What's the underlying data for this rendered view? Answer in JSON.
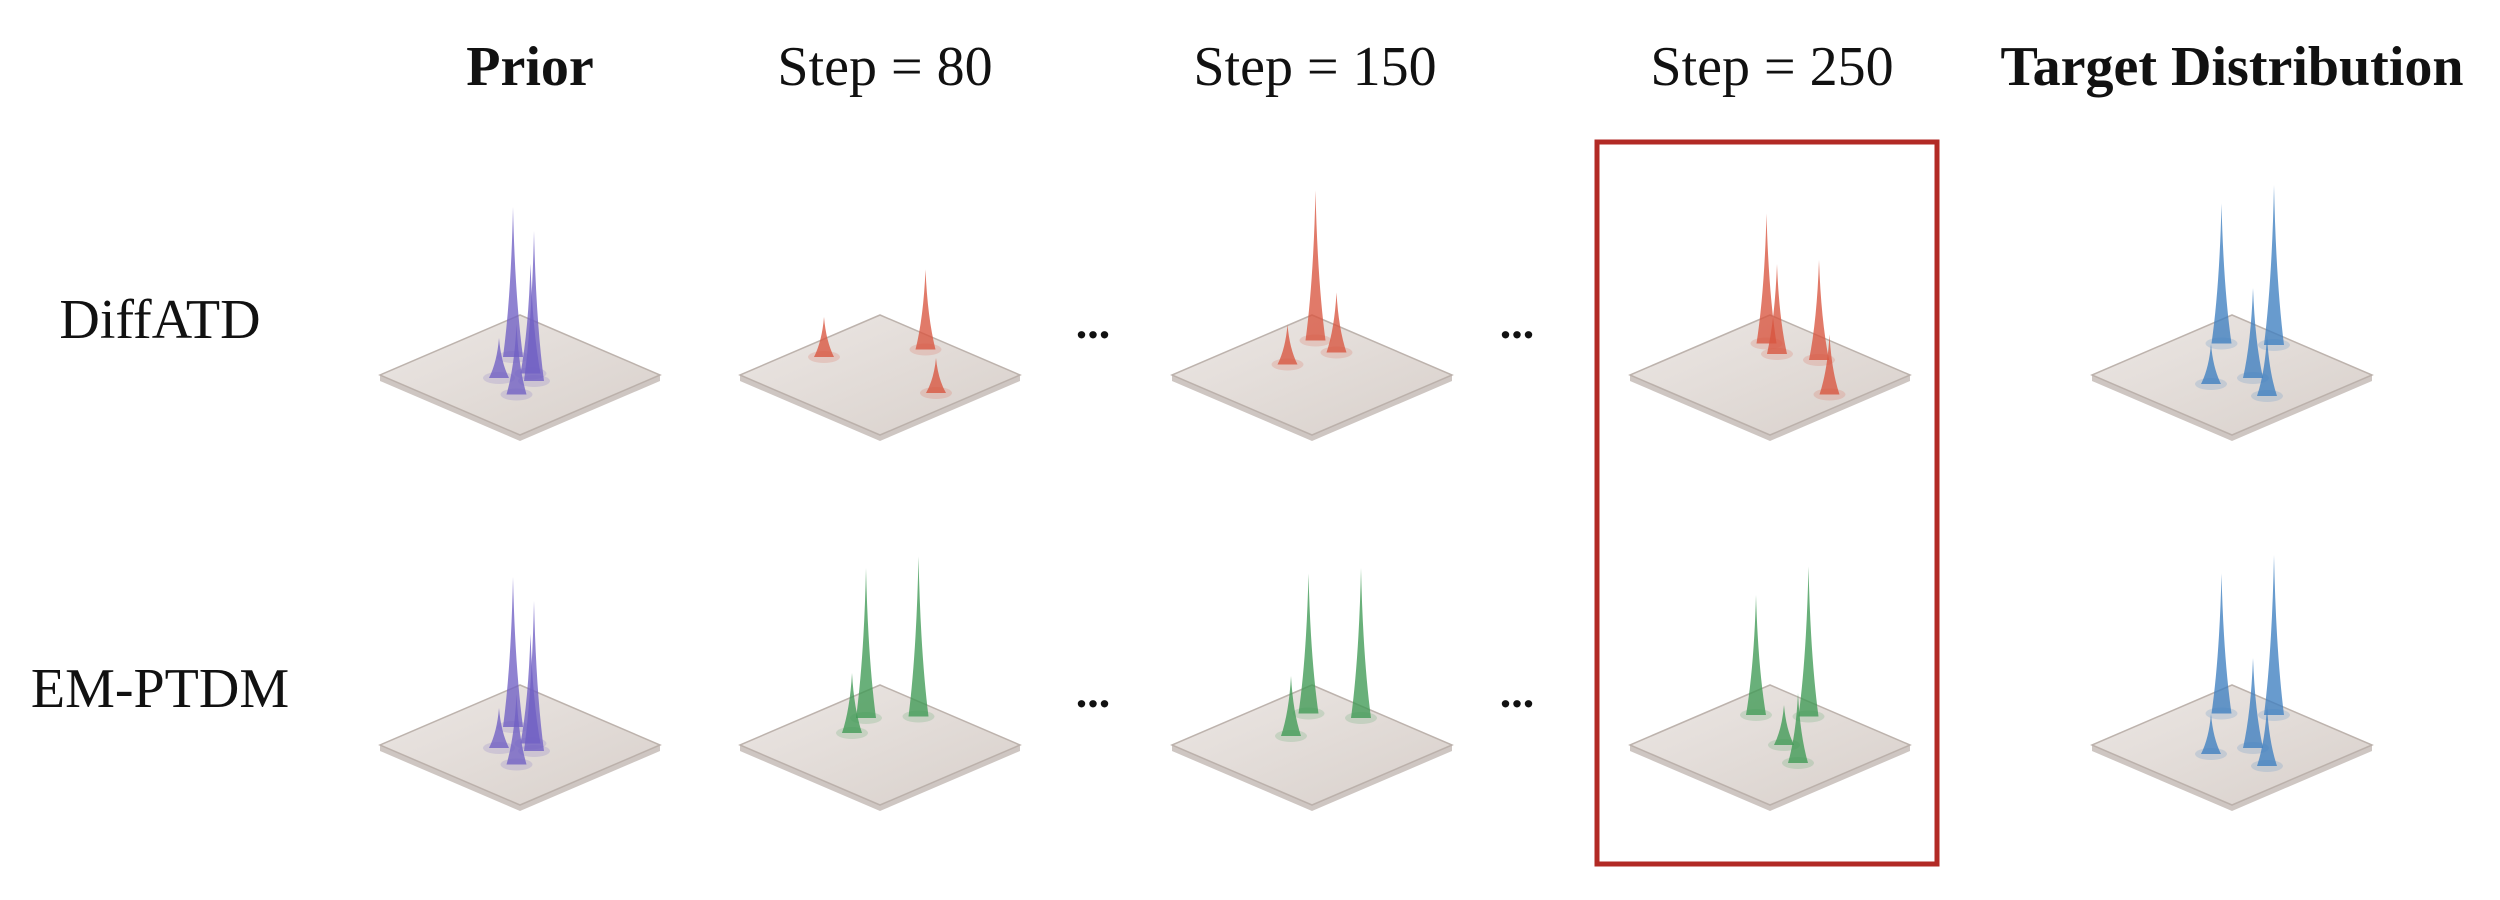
{
  "columns": [
    {
      "label": "Prior",
      "style": "bold",
      "color": "#111111"
    },
    {
      "label": "Step = 80",
      "style": "normal",
      "color": "#111111"
    },
    {
      "label": "Step = 150",
      "style": "normal",
      "color": "#111111"
    },
    {
      "label": "Step = 250",
      "style": "normal",
      "color": "#111111"
    },
    {
      "label": "Target Distribution",
      "style": "bold",
      "color": "#b22a25"
    }
  ],
  "rows": [
    {
      "label": "DiffATD"
    },
    {
      "label": "EM-PTDM"
    }
  ],
  "ellipsis": "...",
  "highlight": {
    "column": "Step = 250",
    "border_color": "#b22a25"
  },
  "colors": {
    "prior": "#6f5fc4",
    "diffatd": "#d9553f",
    "em_ptdm": "#3f9a55",
    "target": "#3d7fc0",
    "plane": "#cfc8c4"
  }
}
